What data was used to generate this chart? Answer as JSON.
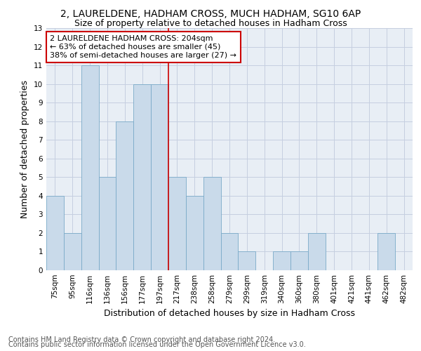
{
  "title": "2, LAURELDENE, HADHAM CROSS, MUCH HADHAM, SG10 6AP",
  "subtitle": "Size of property relative to detached houses in Hadham Cross",
  "xlabel": "Distribution of detached houses by size in Hadham Cross",
  "ylabel": "Number of detached properties",
  "categories": [
    "75sqm",
    "95sqm",
    "116sqm",
    "136sqm",
    "156sqm",
    "177sqm",
    "197sqm",
    "217sqm",
    "238sqm",
    "258sqm",
    "279sqm",
    "299sqm",
    "319sqm",
    "340sqm",
    "360sqm",
    "380sqm",
    "401sqm",
    "421sqm",
    "441sqm",
    "462sqm",
    "482sqm"
  ],
  "values": [
    4,
    2,
    11,
    5,
    8,
    10,
    10,
    5,
    4,
    5,
    2,
    1,
    0,
    1,
    1,
    2,
    0,
    0,
    0,
    2,
    0
  ],
  "bar_color": "#c9daea",
  "bar_edge_color": "#7aaac8",
  "highlight_index": 6,
  "highlight_line_color": "#cc0000",
  "annotation_line1": "2 LAURELDENE HADHAM CROSS: 204sqm",
  "annotation_line2": "← 63% of detached houses are smaller (45)",
  "annotation_line3": "38% of semi-detached houses are larger (27) →",
  "annotation_box_color": "#ffffff",
  "annotation_border_color": "#cc0000",
  "ylim": [
    0,
    13
  ],
  "yticks": [
    0,
    1,
    2,
    3,
    4,
    5,
    6,
    7,
    8,
    9,
    10,
    11,
    12,
    13
  ],
  "footer_line1": "Contains HM Land Registry data © Crown copyright and database right 2024.",
  "footer_line2": "Contains public sector information licensed under the Open Government Licence v3.0.",
  "background_color": "#e8eef5",
  "grid_color": "#c5cfe0",
  "title_fontsize": 10,
  "subtitle_fontsize": 9,
  "axis_label_fontsize": 9,
  "tick_fontsize": 7.5,
  "annotation_fontsize": 8,
  "footer_fontsize": 7
}
